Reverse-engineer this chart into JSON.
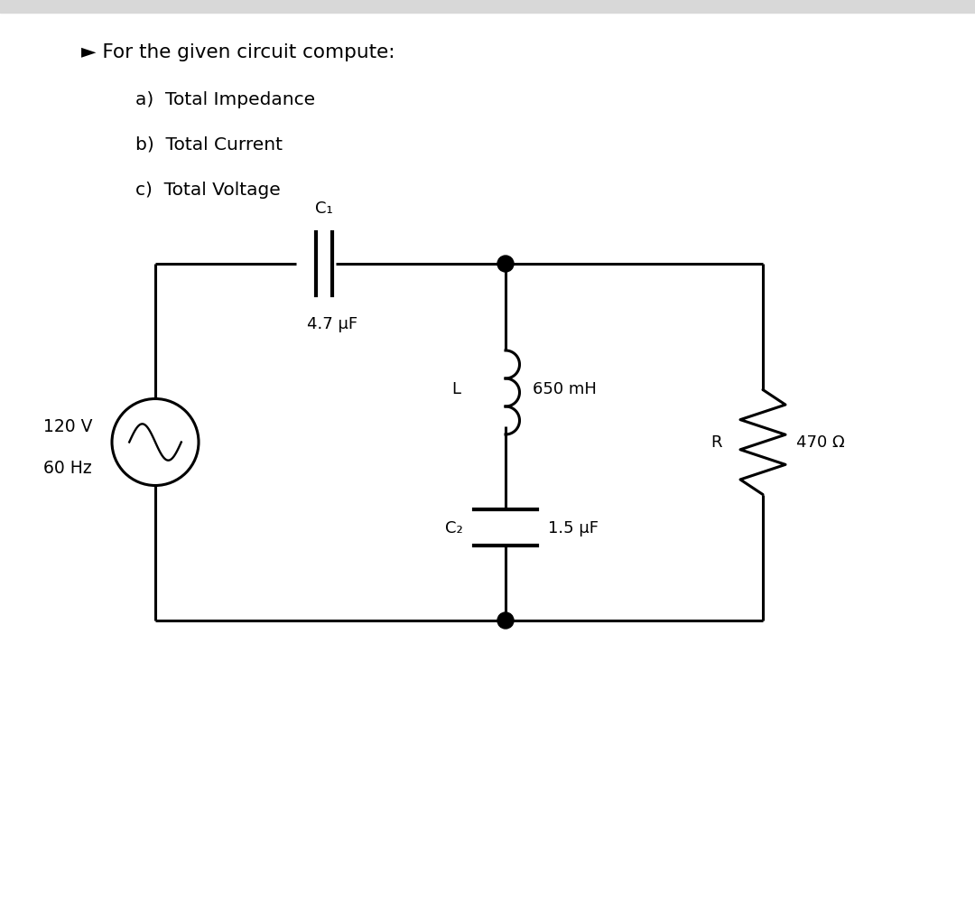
{
  "background_color": "#ffffff",
  "fig_width": 10.8,
  "fig_height": 10.03,
  "text_color": "#000000",
  "bullet_text": "► For the given circuit compute:",
  "sub_items": [
    "a)  Total Impedance",
    "b)  Total Current",
    "c)  Total Voltage"
  ],
  "source_label1": "120 V",
  "source_label2": "60 Hz",
  "C1_label": "C₁",
  "C1_value": "4.7 μF",
  "L_label": "L",
  "L_value": "650 mH",
  "C2_label": "C₂",
  "C2_value": "1.5 μF",
  "R_label": "R",
  "R_value": "470 Ω",
  "line_color": "#000000",
  "line_width": 2.2,
  "gray_bar_color": "#d8d8d8"
}
